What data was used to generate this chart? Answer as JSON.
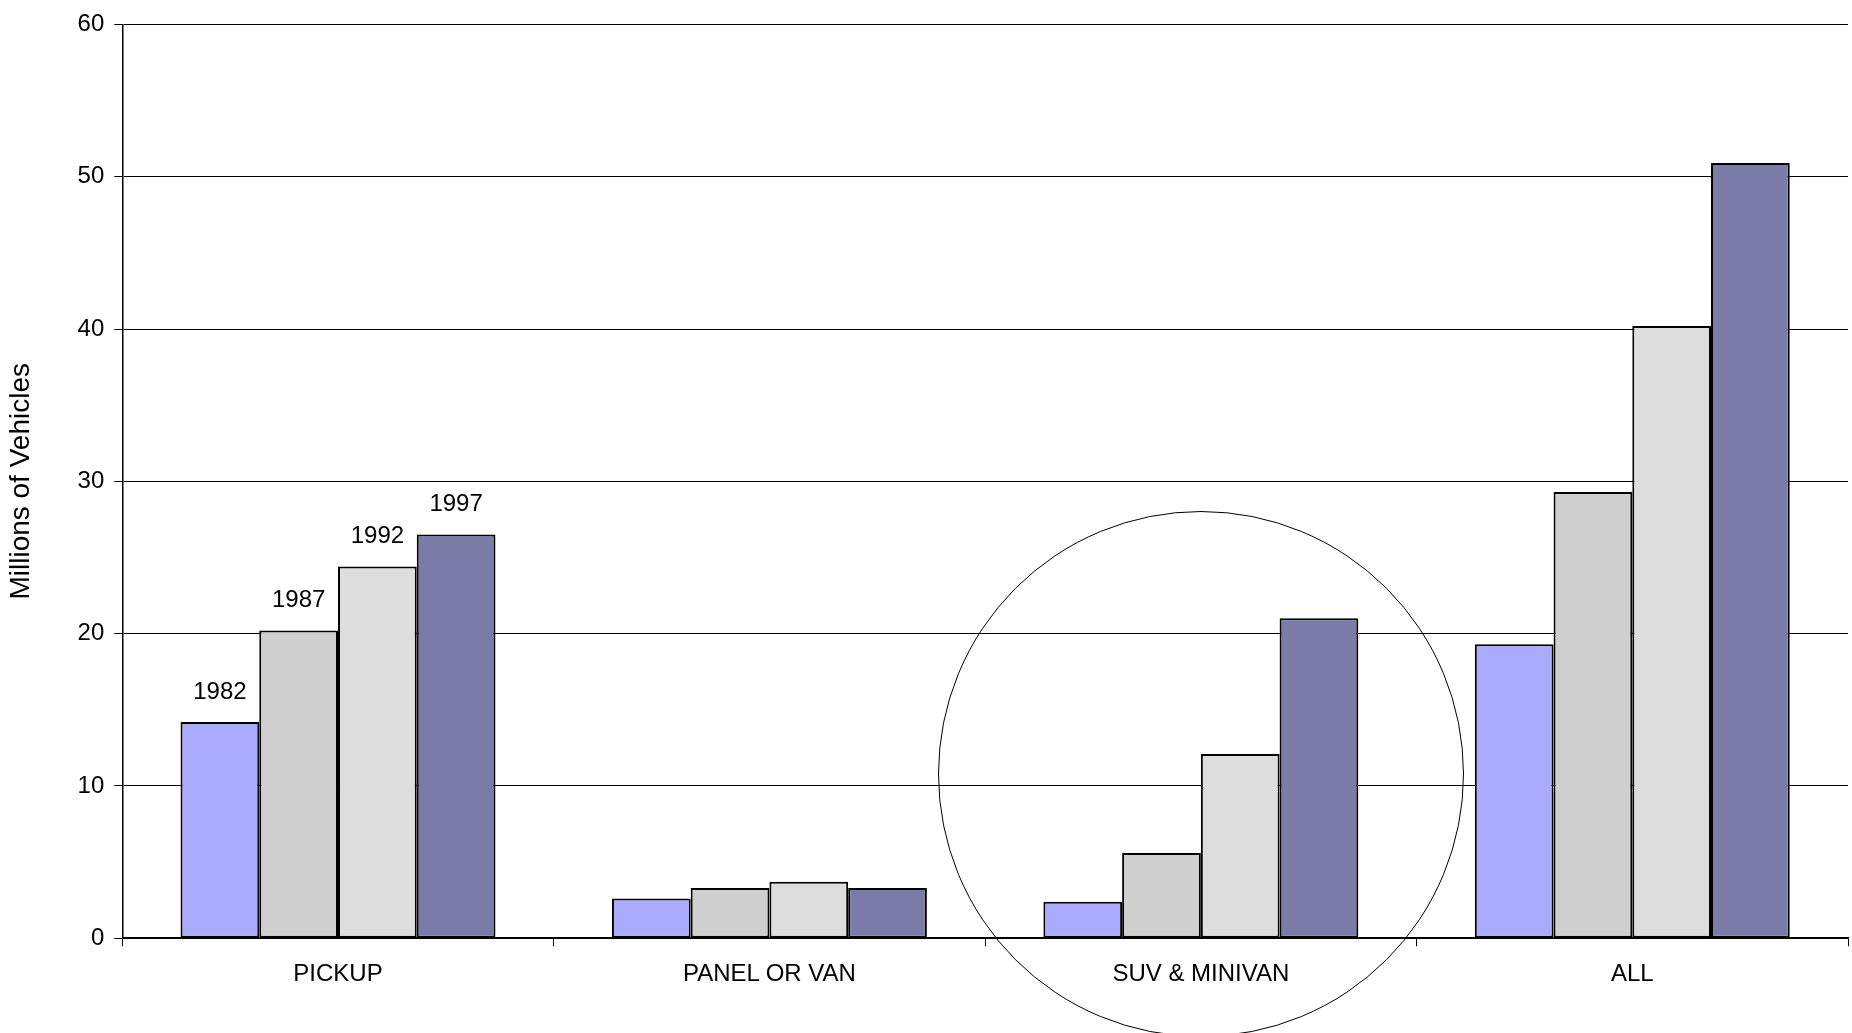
{
  "chart_data": {
    "type": "bar",
    "ylabel": "Millions of Vehicles",
    "categories": [
      "PICKUP",
      "PANEL OR VAN",
      "SUV & MINIVAN",
      "ALL"
    ],
    "series": [
      {
        "name": "1982",
        "color": "#aaaaff",
        "values": [
          14.2,
          2.6,
          2.4,
          19.3
        ]
      },
      {
        "name": "1987",
        "color": "#cfcfcf",
        "values": [
          20.2,
          3.3,
          5.6,
          29.3
        ]
      },
      {
        "name": "1992",
        "color": "#dddddd",
        "values": [
          24.4,
          3.7,
          12.1,
          40.2
        ]
      },
      {
        "name": "1997",
        "color": "#7b7ba8",
        "values": [
          26.5,
          3.3,
          21.0,
          50.9
        ]
      }
    ],
    "ylim": [
      0,
      60
    ],
    "yticks": [
      0,
      10,
      20,
      30,
      40,
      50,
      60
    ],
    "grid": "y",
    "legend": false
  }
}
